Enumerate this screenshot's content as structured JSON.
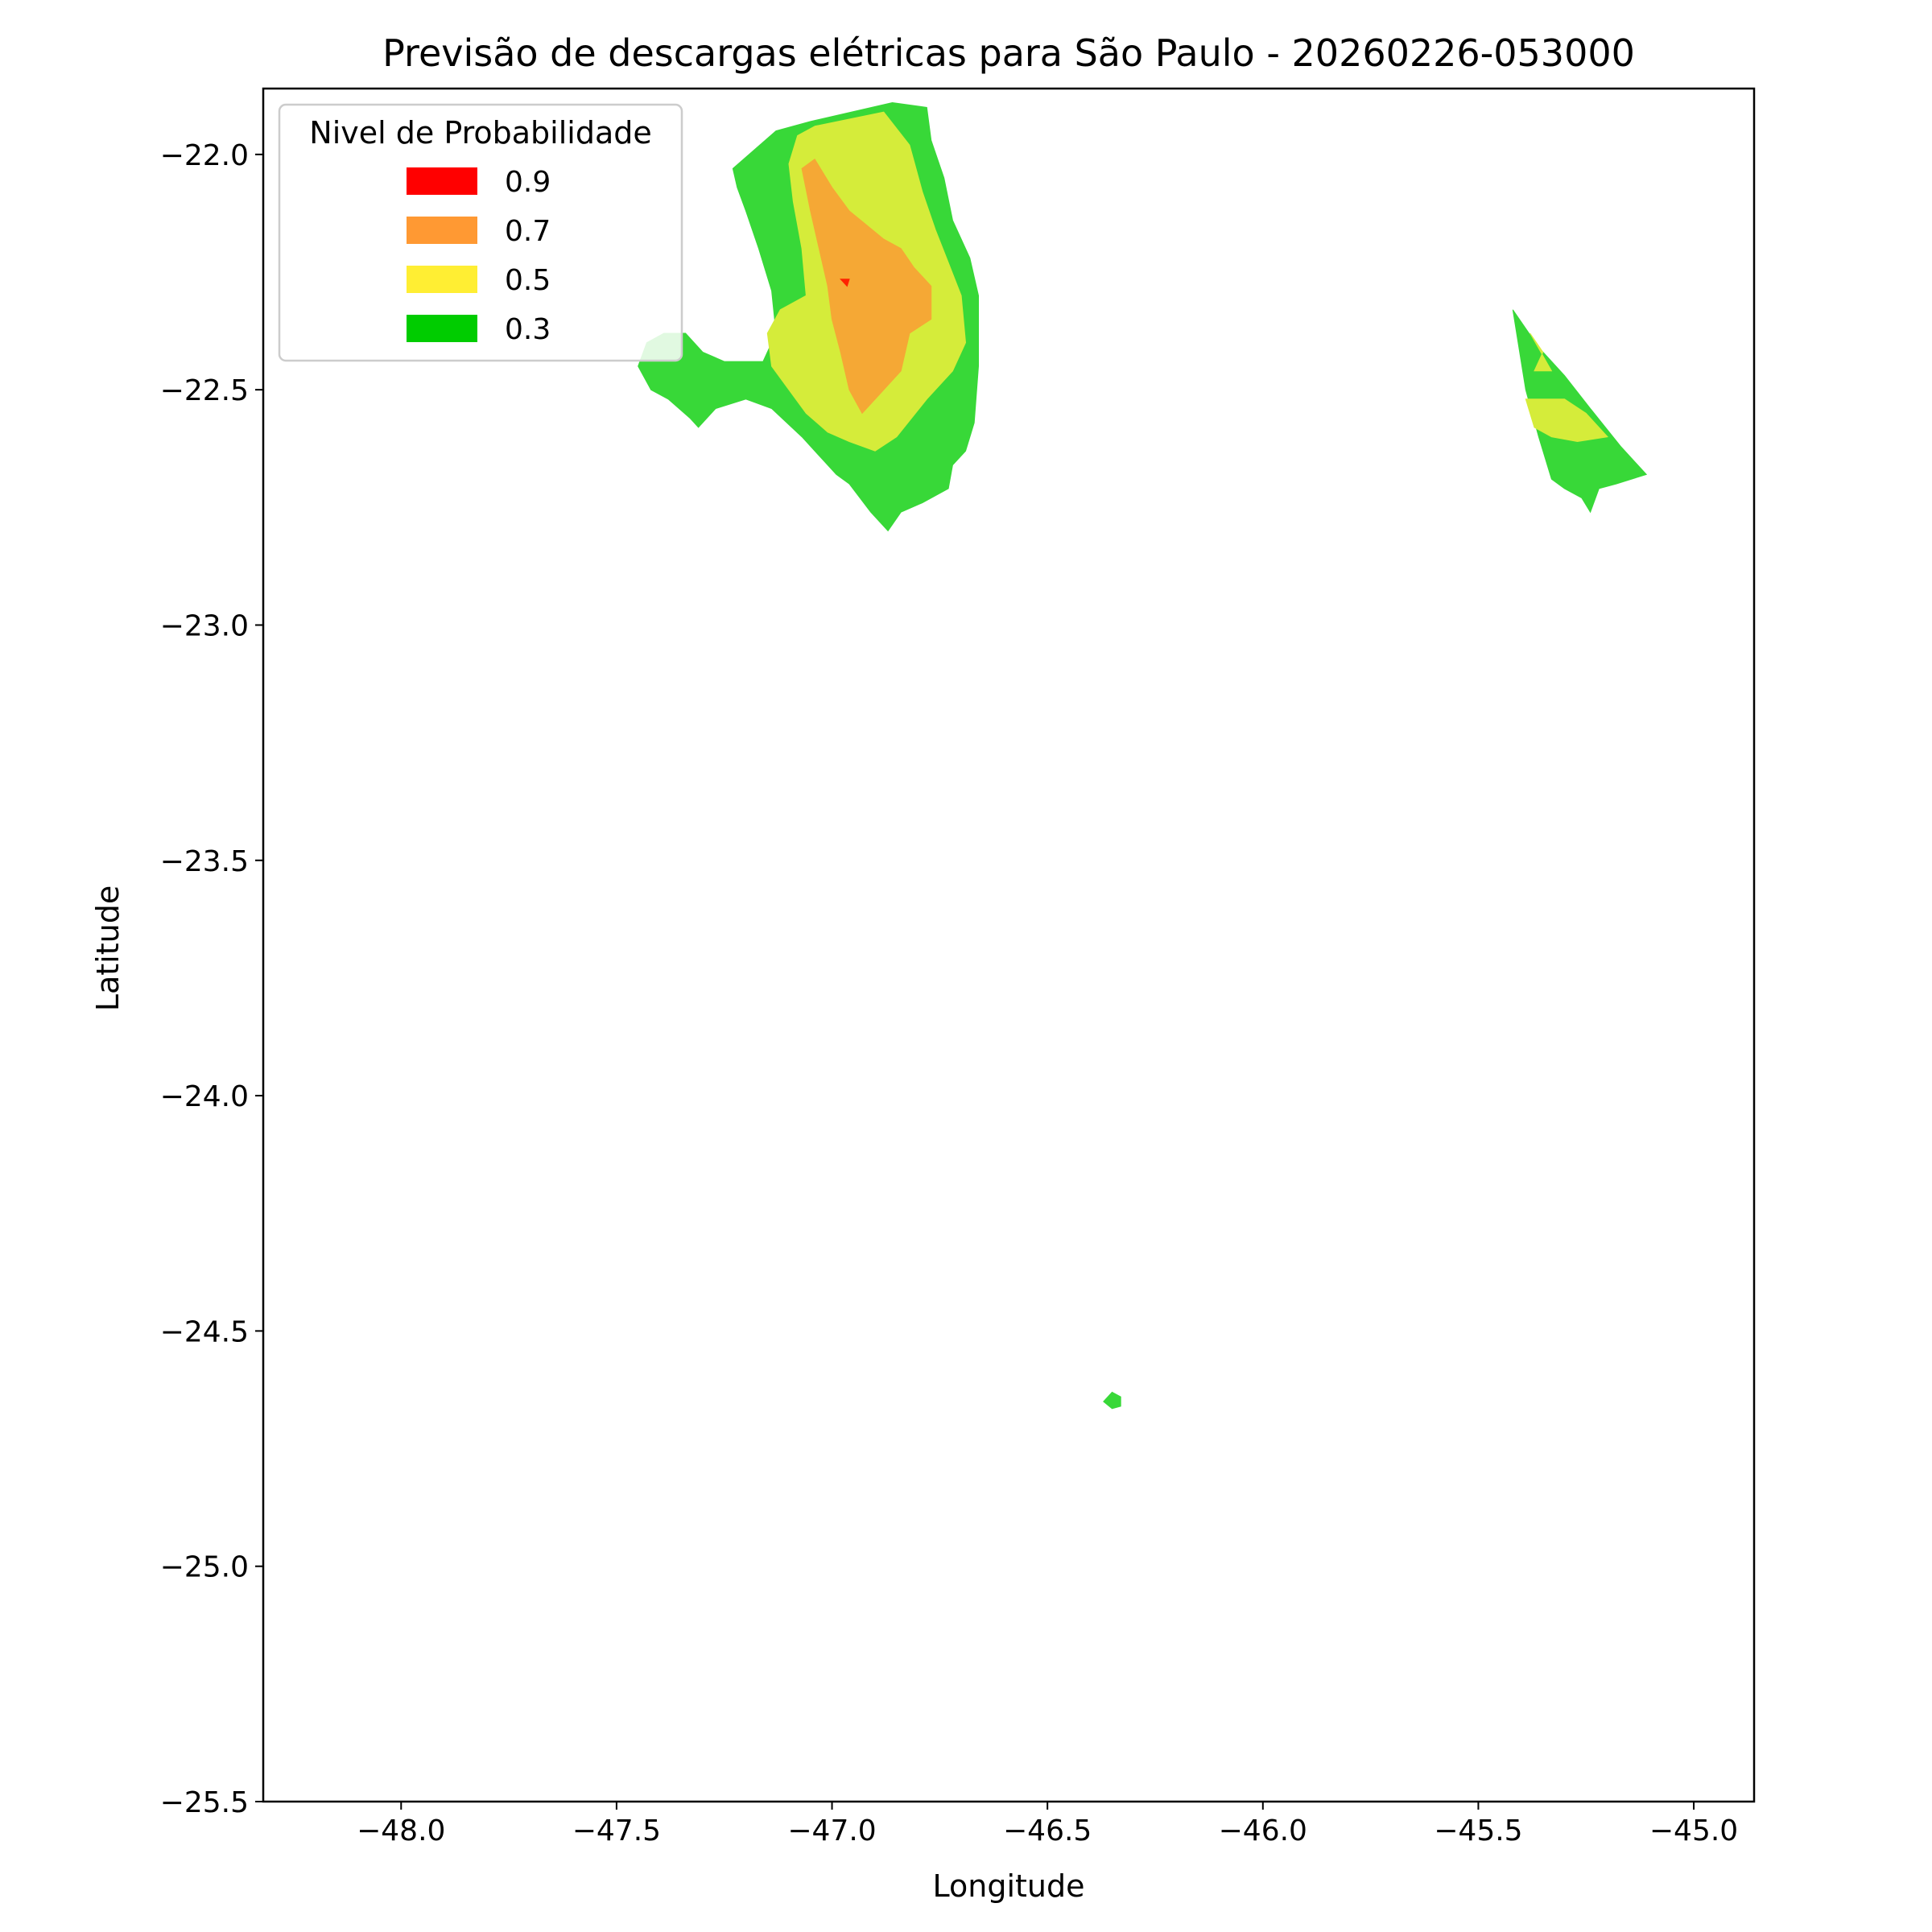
{
  "chart_data": {
    "type": "heatmap",
    "title": "Previsão de descargas elétricas para São Paulo - 20260226-053000",
    "xlabel": "Longitude",
    "ylabel": "Latitude",
    "xlim": [
      -48.32,
      -44.86
    ],
    "ylim": [
      -25.5,
      -21.86
    ],
    "x_ticks": [
      {
        "value": -48.0,
        "label": "−48.0"
      },
      {
        "value": -47.5,
        "label": "−47.5"
      },
      {
        "value": -47.0,
        "label": "−47.0"
      },
      {
        "value": -46.5,
        "label": "−46.5"
      },
      {
        "value": -46.0,
        "label": "−46.0"
      },
      {
        "value": -45.5,
        "label": "−45.5"
      },
      {
        "value": -45.0,
        "label": "−45.0"
      }
    ],
    "y_ticks": [
      {
        "value": -22.0,
        "label": "−22.0"
      },
      {
        "value": -22.5,
        "label": "−22.5"
      },
      {
        "value": -23.0,
        "label": "−23.0"
      },
      {
        "value": -23.5,
        "label": "−23.5"
      },
      {
        "value": -24.0,
        "label": "−24.0"
      },
      {
        "value": -24.5,
        "label": "−24.5"
      },
      {
        "value": -25.0,
        "label": "−25.0"
      },
      {
        "value": -25.5,
        "label": "−25.5"
      }
    ],
    "grid": false,
    "legend": {
      "title": "Nivel de Probabilidade",
      "placement": "top-left",
      "entries": [
        {
          "label": "0.9",
          "color": "#ff0000"
        },
        {
          "label": "0.7",
          "color": "#ff9933"
        },
        {
          "label": "0.5",
          "color": "#ffee33"
        },
        {
          "label": "0.3",
          "color": "#00cc00"
        }
      ]
    },
    "regions": [
      {
        "level": 0.3,
        "color": "#38d838",
        "coords": [
          [
            -47.23,
            -22.03
          ],
          [
            -47.13,
            -21.95
          ],
          [
            -47.05,
            -21.93
          ],
          [
            -46.86,
            -21.89
          ],
          [
            -46.78,
            -21.9
          ],
          [
            -46.77,
            -21.97
          ],
          [
            -46.74,
            -22.05
          ],
          [
            -46.72,
            -22.14
          ],
          [
            -46.68,
            -22.22
          ],
          [
            -46.66,
            -22.3
          ],
          [
            -46.66,
            -22.45
          ],
          [
            -46.67,
            -22.57
          ],
          [
            -46.69,
            -22.63
          ],
          [
            -46.72,
            -22.66
          ],
          [
            -46.73,
            -22.71
          ],
          [
            -46.79,
            -22.74
          ],
          [
            -46.84,
            -22.76
          ],
          [
            -46.87,
            -22.8
          ],
          [
            -46.91,
            -22.76
          ],
          [
            -46.96,
            -22.7
          ],
          [
            -46.99,
            -22.68
          ],
          [
            -47.02,
            -22.65
          ],
          [
            -47.07,
            -22.6
          ],
          [
            -47.14,
            -22.54
          ],
          [
            -47.2,
            -22.52
          ],
          [
            -47.27,
            -22.54
          ],
          [
            -47.31,
            -22.58
          ],
          [
            -47.33,
            -22.56
          ],
          [
            -47.38,
            -22.52
          ],
          [
            -47.42,
            -22.5
          ],
          [
            -47.45,
            -22.45
          ],
          [
            -47.43,
            -22.4
          ],
          [
            -47.39,
            -22.38
          ],
          [
            -47.34,
            -22.38
          ],
          [
            -47.3,
            -22.42
          ],
          [
            -47.25,
            -22.44
          ],
          [
            -47.16,
            -22.44
          ],
          [
            -47.13,
            -22.38
          ],
          [
            -47.14,
            -22.29
          ],
          [
            -47.17,
            -22.2
          ],
          [
            -47.2,
            -22.12
          ],
          [
            -47.22,
            -22.07
          ]
        ]
      },
      {
        "level": 0.3,
        "color": "#38d838",
        "coords": [
          [
            -45.42,
            -22.33
          ],
          [
            -45.36,
            -22.41
          ],
          [
            -45.3,
            -22.47
          ],
          [
            -45.24,
            -22.54
          ],
          [
            -45.17,
            -22.62
          ],
          [
            -45.11,
            -22.68
          ],
          [
            -45.18,
            -22.7
          ],
          [
            -45.22,
            -22.71
          ],
          [
            -45.24,
            -22.76
          ],
          [
            -45.26,
            -22.73
          ],
          [
            -45.3,
            -22.71
          ],
          [
            -45.33,
            -22.69
          ],
          [
            -45.36,
            -22.6
          ],
          [
            -45.39,
            -22.5
          ]
        ]
      },
      {
        "level": 0.3,
        "color": "#38d838",
        "coords": [
          [
            -46.35,
            -24.63
          ],
          [
            -46.33,
            -24.64
          ],
          [
            -46.33,
            -24.66
          ],
          [
            -46.35,
            -24.665
          ],
          [
            -46.37,
            -24.65
          ]
        ]
      },
      {
        "level": 0.5,
        "color": "#d5ec3a",
        "coords": [
          [
            -47.04,
            -21.94
          ],
          [
            -46.88,
            -21.91
          ],
          [
            -46.82,
            -21.98
          ],
          [
            -46.79,
            -22.08
          ],
          [
            -46.76,
            -22.16
          ],
          [
            -46.73,
            -22.23
          ],
          [
            -46.7,
            -22.3
          ],
          [
            -46.69,
            -22.4
          ],
          [
            -46.72,
            -22.46
          ],
          [
            -46.78,
            -22.52
          ],
          [
            -46.85,
            -22.6
          ],
          [
            -46.9,
            -22.63
          ],
          [
            -46.96,
            -22.61
          ],
          [
            -47.01,
            -22.59
          ],
          [
            -47.06,
            -22.55
          ],
          [
            -47.1,
            -22.5
          ],
          [
            -47.14,
            -22.45
          ],
          [
            -47.15,
            -22.38
          ],
          [
            -47.12,
            -22.33
          ],
          [
            -47.06,
            -22.3
          ],
          [
            -47.07,
            -22.2
          ],
          [
            -47.09,
            -22.1
          ],
          [
            -47.1,
            -22.02
          ],
          [
            -47.08,
            -21.96
          ]
        ]
      },
      {
        "level": 0.5,
        "color": "#d5ec3a",
        "coords": [
          [
            -45.39,
            -22.52
          ],
          [
            -45.3,
            -22.52
          ],
          [
            -45.25,
            -22.55
          ],
          [
            -45.2,
            -22.6
          ],
          [
            -45.27,
            -22.61
          ],
          [
            -45.33,
            -22.6
          ],
          [
            -45.37,
            -22.58
          ]
        ]
      },
      {
        "level": 0.5,
        "color": "#d5ec3a",
        "coords": [
          [
            -45.38,
            -22.38
          ],
          [
            -45.35,
            -22.42
          ],
          [
            -45.37,
            -22.46
          ],
          [
            -45.33,
            -22.46
          ]
        ]
      },
      {
        "level": 0.7,
        "color": "#f5a835",
        "coords": [
          [
            -47.07,
            -22.03
          ],
          [
            -47.04,
            -22.01
          ],
          [
            -47.0,
            -22.07
          ],
          [
            -46.96,
            -22.12
          ],
          [
            -46.92,
            -22.15
          ],
          [
            -46.88,
            -22.18
          ],
          [
            -46.84,
            -22.2
          ],
          [
            -46.81,
            -22.24
          ],
          [
            -46.77,
            -22.28
          ],
          [
            -46.77,
            -22.35
          ],
          [
            -46.82,
            -22.38
          ],
          [
            -46.84,
            -22.46
          ],
          [
            -46.88,
            -22.5
          ],
          [
            -46.93,
            -22.55
          ],
          [
            -46.96,
            -22.5
          ],
          [
            -46.98,
            -22.42
          ],
          [
            -47.0,
            -22.35
          ],
          [
            -47.01,
            -22.28
          ],
          [
            -47.03,
            -22.2
          ],
          [
            -47.05,
            -22.12
          ]
        ]
      },
      {
        "level": 0.9,
        "color": "#ff2200",
        "coords": [
          [
            -46.98,
            -22.265
          ],
          [
            -46.96,
            -22.265
          ],
          [
            -46.965,
            -22.28
          ]
        ]
      }
    ]
  }
}
